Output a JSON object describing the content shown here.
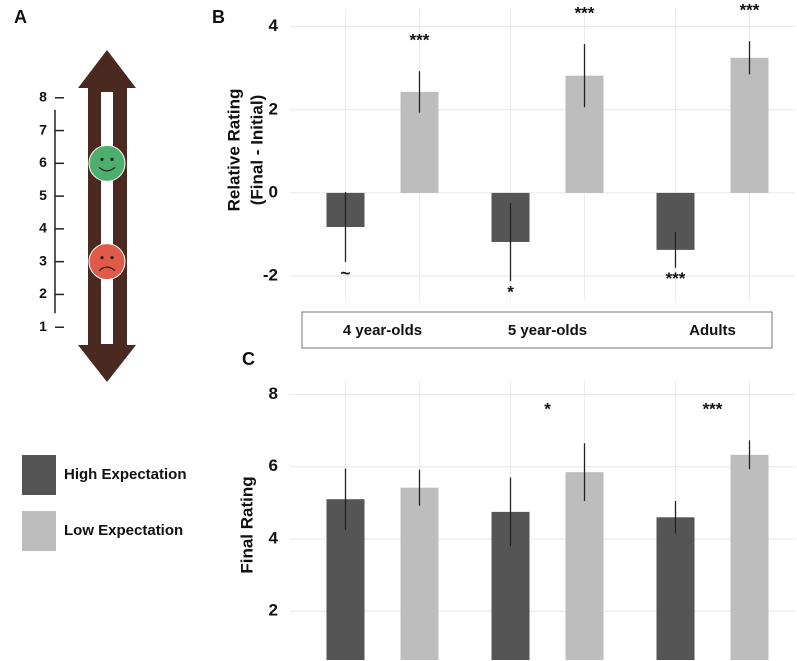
{
  "chart_data": [
    {
      "type": "scale",
      "panel": "A",
      "ylim": [
        0,
        9
      ],
      "yticks": [
        1,
        2,
        3,
        4,
        5,
        6,
        7,
        8
      ],
      "markers": [
        {
          "value": 6,
          "color": "#4caf6e"
        },
        {
          "value": 3,
          "color": "#e05a4a"
        }
      ]
    },
    {
      "type": "bar",
      "panel": "B",
      "ylabel": [
        "Relative Rating",
        "(Final - Initial)"
      ],
      "categories": [
        "4 year-olds",
        "5 year-olds",
        "Adults"
      ],
      "ylim": [
        -2.6,
        4.4
      ],
      "yticks": [
        -2,
        0,
        2,
        4
      ],
      "grid": true,
      "series": [
        {
          "color": "#555555",
          "values": [
            -0.82,
            -1.18,
            -1.37
          ],
          "errors": [
            0.84,
            0.94,
            0.43
          ],
          "sig_labels": [
            "~",
            "*",
            "***"
          ]
        },
        {
          "color": "#bdbdbd",
          "values": [
            2.43,
            2.82,
            3.25
          ],
          "errors": [
            0.5,
            0.76,
            0.4
          ],
          "sig_labels": [
            "***",
            "***",
            "***"
          ]
        }
      ]
    },
    {
      "type": "bar",
      "panel": "C",
      "ylabel": [
        "Final Rating"
      ],
      "ylim": [
        0.65,
        8.4
      ],
      "yticks": [
        2,
        4,
        6,
        8
      ],
      "grid": true,
      "sig_labels": [
        null,
        "*",
        "***"
      ],
      "series": [
        {
          "name": "High Expectation",
          "color": "#555555",
          "values": [
            5.1,
            4.75,
            4.6
          ],
          "errors": [
            0.85,
            0.95,
            0.45
          ]
        },
        {
          "name": "Low Expectation",
          "color": "#bdbdbd",
          "values": [
            5.42,
            5.85,
            6.33
          ],
          "errors": [
            0.5,
            0.8,
            0.4
          ]
        }
      ]
    }
  ]
}
